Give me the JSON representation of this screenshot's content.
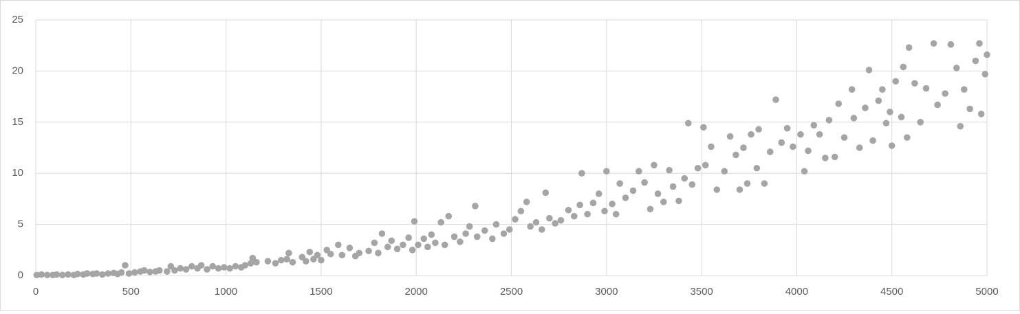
{
  "chart_data": {
    "type": "scatter",
    "x": [
      5,
      30,
      60,
      90,
      110,
      140,
      170,
      200,
      220,
      250,
      270,
      300,
      320,
      350,
      380,
      410,
      430,
      450,
      470,
      490,
      520,
      550,
      570,
      600,
      630,
      650,
      690,
      710,
      730,
      760,
      790,
      820,
      850,
      870,
      900,
      930,
      960,
      990,
      1020,
      1050,
      1080,
      1100,
      1130,
      1140,
      1160,
      1220,
      1260,
      1290,
      1320,
      1330,
      1350,
      1400,
      1420,
      1440,
      1460,
      1480,
      1500,
      1530,
      1550,
      1590,
      1610,
      1650,
      1680,
      1700,
      1750,
      1780,
      1800,
      1820,
      1850,
      1870,
      1900,
      1930,
      1960,
      1980,
      1990,
      2010,
      2040,
      2060,
      2080,
      2100,
      2130,
      2150,
      2170,
      2200,
      2230,
      2260,
      2280,
      2310,
      2320,
      2360,
      2400,
      2420,
      2460,
      2490,
      2520,
      2550,
      2580,
      2600,
      2630,
      2660,
      2680,
      2700,
      2730,
      2760,
      2800,
      2830,
      2860,
      2870,
      2900,
      2930,
      2960,
      2990,
      3000,
      3030,
      3050,
      3070,
      3100,
      3140,
      3170,
      3200,
      3230,
      3250,
      3270,
      3300,
      3330,
      3350,
      3380,
      3410,
      3430,
      3450,
      3480,
      3510,
      3520,
      3550,
      3580,
      3620,
      3650,
      3680,
      3700,
      3720,
      3740,
      3760,
      3790,
      3800,
      3830,
      3860,
      3890,
      3920,
      3950,
      3980,
      4020,
      4040,
      4060,
      4090,
      4120,
      4150,
      4170,
      4200,
      4220,
      4250,
      4290,
      4300,
      4330,
      4360,
      4380,
      4400,
      4430,
      4450,
      4470,
      4490,
      4500,
      4520,
      4550,
      4560,
      4580,
      4590,
      4620,
      4650,
      4680,
      4720,
      4740,
      4780,
      4810,
      4840,
      4860,
      4880,
      4910,
      4940,
      4960,
      4970,
      4990,
      5000
    ],
    "values": [
      0.05,
      0.1,
      0.05,
      0.05,
      0.1,
      0.05,
      0.1,
      0.05,
      0.15,
      0.1,
      0.2,
      0.15,
      0.2,
      0.1,
      0.2,
      0.25,
      0.15,
      0.3,
      1.0,
      0.2,
      0.3,
      0.4,
      0.5,
      0.35,
      0.4,
      0.5,
      0.4,
      0.9,
      0.5,
      0.7,
      0.6,
      0.9,
      0.7,
      1.0,
      0.6,
      0.9,
      0.7,
      0.8,
      0.7,
      0.9,
      0.8,
      1.0,
      1.2,
      1.7,
      1.3,
      1.4,
      1.2,
      1.5,
      1.6,
      2.2,
      1.3,
      1.8,
      1.4,
      2.3,
      1.6,
      2.0,
      1.5,
      2.5,
      2.1,
      3.0,
      2.0,
      2.7,
      1.9,
      2.2,
      2.4,
      3.2,
      2.2,
      4.1,
      2.8,
      3.4,
      2.6,
      3.0,
      3.7,
      2.5,
      5.3,
      3.0,
      3.6,
      2.8,
      4.0,
      3.2,
      5.2,
      3.0,
      5.8,
      3.8,
      3.3,
      4.1,
      4.8,
      6.8,
      3.8,
      4.4,
      3.6,
      5.0,
      4.1,
      4.5,
      5.5,
      6.3,
      7.2,
      4.8,
      5.2,
      4.5,
      8.1,
      5.6,
      5.1,
      5.4,
      6.4,
      5.8,
      6.9,
      10.0,
      6.0,
      7.1,
      8.0,
      6.3,
      10.2,
      7.0,
      6.0,
      9.0,
      7.6,
      8.3,
      10.2,
      9.1,
      6.5,
      10.8,
      8.0,
      7.2,
      10.3,
      8.7,
      7.3,
      9.5,
      14.9,
      8.9,
      10.5,
      14.5,
      10.8,
      12.6,
      8.4,
      10.2,
      13.6,
      11.8,
      8.4,
      12.5,
      9.0,
      13.8,
      10.5,
      14.3,
      9.0,
      12.1,
      17.2,
      13.0,
      14.4,
      12.6,
      13.8,
      10.2,
      12.2,
      14.7,
      13.8,
      11.5,
      15.2,
      11.6,
      16.8,
      13.5,
      18.2,
      15.4,
      12.5,
      16.4,
      20.1,
      13.2,
      17.1,
      18.2,
      14.9,
      16.0,
      12.7,
      19.0,
      15.5,
      20.4,
      13.5,
      22.3,
      18.8,
      15.0,
      18.3,
      22.7,
      16.7,
      17.8,
      22.6,
      20.3,
      14.6,
      18.2,
      16.3,
      21.0,
      22.7,
      15.8,
      19.7,
      21.6
    ],
    "color": "#a5a5a5",
    "xlim": [
      0,
      5000
    ],
    "xticks": [
      0,
      500,
      1000,
      1500,
      2000,
      2500,
      3000,
      3500,
      4000,
      4500,
      5000
    ],
    "ylim": [
      0,
      25
    ],
    "yticks": [
      0,
      5,
      10,
      15,
      20,
      25
    ],
    "grid": true
  }
}
